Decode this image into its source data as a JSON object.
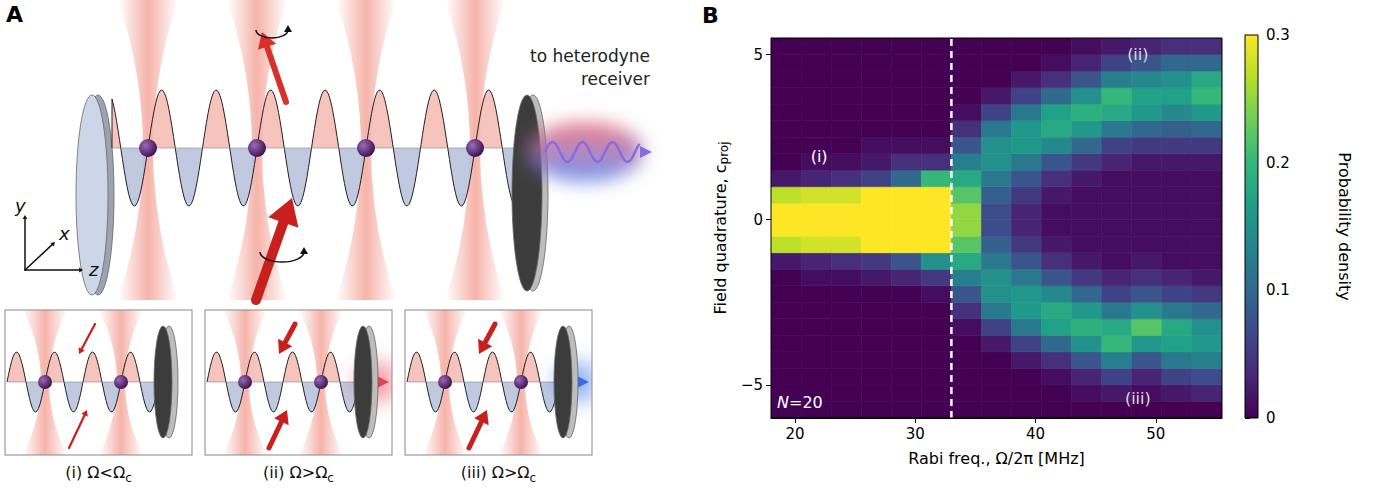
{
  "diagram": {
    "panel": "A",
    "output_label": "to heterodyne receiver",
    "axes_labels": [
      "y",
      "x",
      "z"
    ],
    "insets": [
      {
        "label": "(i) Ω<Ω",
        "subscript": "c"
      },
      {
        "label": "(ii) Ω>Ω",
        "subscript": "c"
      },
      {
        "label": "(iii) Ω>Ω",
        "subscript": "c"
      }
    ]
  },
  "chart_data": {
    "type": "heatmap",
    "panel": "B",
    "x_label": "Rabi freq., Ω/2π [MHz]",
    "y_label": "Field quadrature, c",
    "y_label_subscript": "proj",
    "xlim": [
      18,
      55.5
    ],
    "xticks": [
      20,
      30,
      40,
      50
    ],
    "ylim": [
      -6,
      5.5
    ],
    "yticks": [
      {
        "value": -5,
        "label": "−5"
      },
      0,
      5
    ],
    "x_bins": [
      18,
      20.5,
      23,
      25.5,
      28,
      30.5,
      33,
      35.5,
      38,
      40.5,
      43,
      45.5,
      48,
      50.5,
      53,
      55.5
    ],
    "y_bins": [
      -6,
      -5.5,
      -5,
      -4.5,
      -4,
      -3.5,
      -3,
      -2.5,
      -2,
      -1.5,
      -1,
      -0.5,
      0,
      0.5,
      1,
      1.5,
      2,
      2.5,
      3,
      3.5,
      4,
      4.5,
      5,
      5.5
    ],
    "density": [
      [
        0,
        0,
        0,
        0,
        0,
        0,
        0,
        0,
        0,
        0.02,
        0.27,
        0.75,
        0.75,
        0.27,
        0.02,
        0,
        0,
        0,
        0,
        0,
        0,
        0,
        0
      ],
      [
        0,
        0,
        0,
        0,
        0,
        0,
        0,
        0,
        0.01,
        0.03,
        0.28,
        0.7,
        0.7,
        0.28,
        0.03,
        0.01,
        0,
        0,
        0,
        0,
        0,
        0,
        0
      ],
      [
        0,
        0,
        0,
        0,
        0,
        0,
        0,
        0,
        0.01,
        0.04,
        0.28,
        0.65,
        0.65,
        0.28,
        0.04,
        0.01,
        0,
        0,
        0,
        0,
        0,
        0,
        0
      ],
      [
        0,
        0,
        0,
        0,
        0,
        0,
        0,
        0,
        0.02,
        0.05,
        0.3,
        0.6,
        0.6,
        0.3,
        0.06,
        0.02,
        0.01,
        0,
        0,
        0,
        0,
        0,
        0
      ],
      [
        0,
        0,
        0,
        0,
        0,
        0,
        0,
        0,
        0.03,
        0.08,
        0.3,
        0.5,
        0.5,
        0.32,
        0.1,
        0.04,
        0.01,
        0,
        0,
        0,
        0,
        0,
        0
      ],
      [
        0,
        0,
        0,
        0,
        0,
        0,
        0,
        0.01,
        0.05,
        0.15,
        0.35,
        0.4,
        0.4,
        0.35,
        0.2,
        0.04,
        0.01,
        0,
        0,
        0,
        0,
        0,
        0
      ],
      [
        0,
        0,
        0,
        0,
        0,
        0.01,
        0.04,
        0.08,
        0.13,
        0.18,
        0.22,
        0.25,
        0.25,
        0.22,
        0.18,
        0.13,
        0.08,
        0.04,
        0.01,
        0,
        0,
        0,
        0
      ],
      [
        0,
        0,
        0,
        0,
        0.02,
        0.06,
        0.12,
        0.15,
        0.15,
        0.12,
        0.09,
        0.07,
        0.07,
        0.09,
        0.12,
        0.15,
        0.15,
        0.12,
        0.06,
        0.02,
        0,
        0,
        0
      ],
      [
        0,
        0,
        0,
        0.02,
        0.06,
        0.12,
        0.16,
        0.16,
        0.12,
        0.08,
        0.05,
        0.03,
        0.03,
        0.05,
        0.08,
        0.12,
        0.16,
        0.16,
        0.12,
        0.06,
        0.02,
        0,
        0
      ],
      [
        0,
        0,
        0.01,
        0.04,
        0.1,
        0.17,
        0.18,
        0.14,
        0.08,
        0.04,
        0.02,
        0.01,
        0.01,
        0.02,
        0.04,
        0.08,
        0.14,
        0.18,
        0.17,
        0.1,
        0.04,
        0.01,
        0
      ],
      [
        0,
        0.01,
        0.03,
        0.08,
        0.15,
        0.19,
        0.16,
        0.1,
        0.05,
        0.02,
        0.01,
        0.01,
        0.01,
        0.01,
        0.02,
        0.05,
        0.1,
        0.16,
        0.19,
        0.15,
        0.08,
        0.03,
        0.01
      ],
      [
        0,
        0.02,
        0.06,
        0.13,
        0.2,
        0.18,
        0.12,
        0.06,
        0.03,
        0.01,
        0.01,
        0.01,
        0.01,
        0.01,
        0.01,
        0.03,
        0.06,
        0.12,
        0.18,
        0.2,
        0.13,
        0.06,
        0.02
      ],
      [
        0,
        0.01,
        0.03,
        0.08,
        0.16,
        0.22,
        0.15,
        0.08,
        0.04,
        0.02,
        0.01,
        0.01,
        0.01,
        0.01,
        0.01,
        0.02,
        0.05,
        0.1,
        0.16,
        0.17,
        0.14,
        0.08,
        0.03
      ],
      [
        0,
        0.02,
        0.06,
        0.12,
        0.17,
        0.18,
        0.12,
        0.06,
        0.03,
        0.01,
        0.01,
        0.01,
        0.01,
        0.01,
        0.01,
        0.02,
        0.05,
        0.09,
        0.14,
        0.17,
        0.15,
        0.1,
        0.04
      ],
      [
        0,
        0.03,
        0.07,
        0.13,
        0.16,
        0.15,
        0.1,
        0.05,
        0.02,
        0.01,
        0.01,
        0.01,
        0.01,
        0.01,
        0.01,
        0.02,
        0.05,
        0.1,
        0.16,
        0.2,
        0.18,
        0.1,
        0.04
      ]
    ],
    "colorbar": {
      "label": "Probability density",
      "range": [
        0,
        0.3
      ],
      "ticks": [
        0,
        0.1,
        0.2,
        0.3
      ]
    },
    "critical_rabi_freq": 33,
    "annotations": [
      "(i)",
      "(ii)",
      "(iii)",
      "N=20"
    ]
  }
}
